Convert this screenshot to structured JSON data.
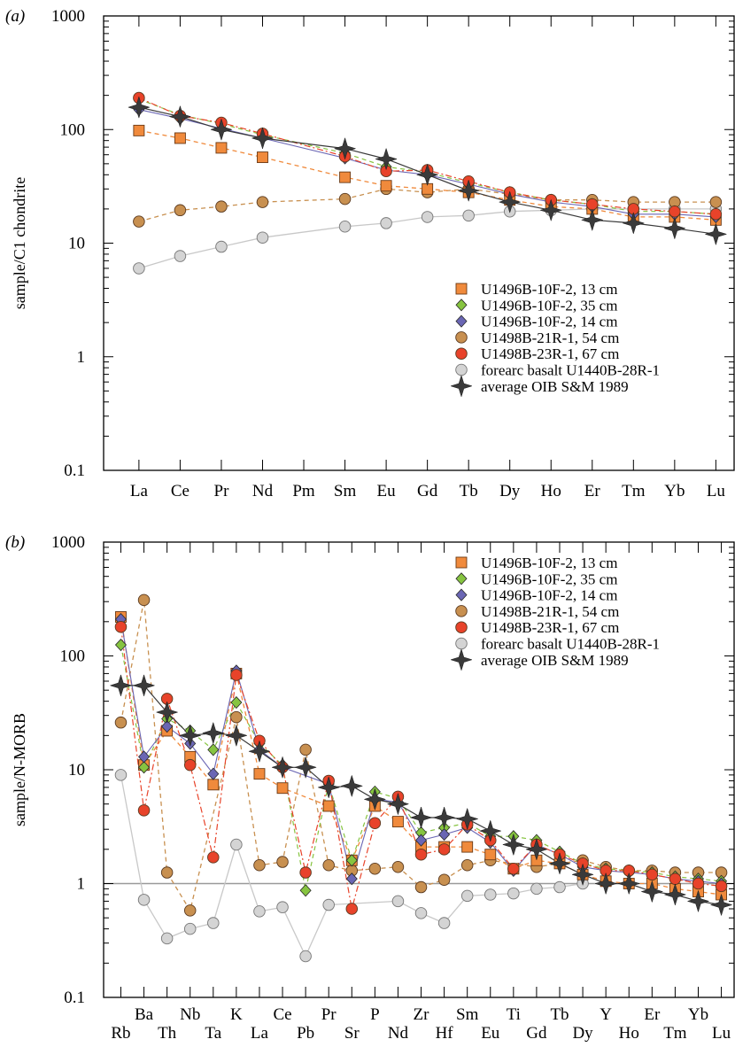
{
  "colors": {
    "orange_square": "#f08a3c",
    "green_diamond": "#86c440",
    "blue_diamond": "#6a66b4",
    "brown_circle": "#c89050",
    "red_circle": "#e8432a",
    "gray_circle": "#d4d4d4",
    "oib_star": "#3a3a3a",
    "frame": "#000000",
    "reference_line": "#9a9a9a"
  },
  "legend_entries": [
    {
      "key": "s13",
      "label": "U1496B-10F-2, 13 cm",
      "marker": "square",
      "color": "#f08a3c"
    },
    {
      "key": "s35",
      "label": "U1496B-10F-2, 35 cm",
      "marker": "diamond",
      "color": "#86c440"
    },
    {
      "key": "s14",
      "label": "U1496B-10F-2, 14 cm",
      "marker": "diamond",
      "color": "#6a66b4"
    },
    {
      "key": "s54",
      "label": "U1498B-21R-1, 54 cm",
      "marker": "circle",
      "color": "#c89050"
    },
    {
      "key": "s67",
      "label": "U1498B-23R-1, 67 cm",
      "marker": "circle",
      "color": "#e8432a"
    },
    {
      "key": "fab",
      "label": "forearc basalt U1440B-28R-1",
      "marker": "circle",
      "color": "#d4d4d4"
    },
    {
      "key": "oib",
      "label": "average OIB S&M 1989",
      "marker": "star",
      "color": "#3a3a3a"
    }
  ],
  "chart_data": [
    {
      "panel_label": "(a)",
      "type": "line",
      "ylabel": "sample/C1 chondrite",
      "yscale": "log",
      "ylim": [
        0.1,
        1000
      ],
      "yticks": [
        "0.1",
        "1",
        "10",
        "100",
        "1000"
      ],
      "categories": [
        "La",
        "Ce",
        "Pr",
        "Nd",
        "Pm",
        "Sm",
        "Eu",
        "Gd",
        "Tb",
        "Dy",
        "Ho",
        "Er",
        "Tm",
        "Yb",
        "Lu"
      ],
      "legend_position": "lower-right",
      "series": [
        {
          "key": "s13",
          "name": "U1496B-10F-2, 13 cm",
          "values": [
            98,
            84,
            69,
            57,
            null,
            38,
            32,
            30,
            28,
            24,
            21,
            20,
            17,
            17,
            16
          ]
        },
        {
          "key": "s35",
          "name": "U1496B-10F-2, 35 cm",
          "values": [
            185,
            135,
            112,
            90,
            null,
            62,
            47,
            42,
            34,
            28,
            24,
            22,
            19,
            19,
            18
          ]
        },
        {
          "key": "s14",
          "name": "U1496B-10F-2, 14 cm",
          "values": [
            150,
            125,
            102,
            84,
            null,
            56,
            44,
            40,
            33,
            27,
            23,
            21,
            18,
            18,
            17
          ]
        },
        {
          "key": "s54",
          "name": "U1498B-21R-1, 54 cm",
          "values": [
            15.5,
            19.5,
            21,
            23,
            null,
            24.5,
            30,
            28,
            30,
            27,
            24,
            24,
            23,
            23,
            23
          ]
        },
        {
          "key": "s67",
          "name": "U1498B-23R-1, 67 cm",
          "values": [
            190,
            132,
            115,
            92,
            null,
            58,
            43,
            44,
            35,
            28,
            24,
            22,
            20,
            19,
            18
          ]
        },
        {
          "key": "fab",
          "name": "forearc basalt U1440B-28R-1",
          "values": [
            6,
            7.7,
            9.3,
            11.2,
            null,
            14,
            15,
            17,
            17.5,
            19,
            19.5,
            20,
            20,
            20,
            20
          ]
        },
        {
          "key": "oib",
          "name": "average OIB S&M 1989",
          "values": [
            157,
            130,
            100,
            84,
            null,
            68,
            55,
            40,
            29,
            23,
            19.5,
            16,
            15,
            13.5,
            12
          ]
        }
      ]
    },
    {
      "panel_label": "(b)",
      "type": "line",
      "ylabel": "sample/N-MORB",
      "yscale": "log",
      "ylim": [
        0.1,
        1000
      ],
      "yticks": [
        "0.1",
        "1",
        "10",
        "100",
        "1000"
      ],
      "reference_line": 1,
      "categories": [
        "Rb",
        "Ba",
        "Th",
        "Nb",
        "Ta",
        "K",
        "La",
        "Ce",
        "Pb",
        "Pr",
        "Sr",
        "P",
        "Nd",
        "Zr",
        "Hf",
        "Sm",
        "Eu",
        "Ti",
        "Gd",
        "Tb",
        "Dy",
        "Y",
        "Ho",
        "Er",
        "Tm",
        "Yb",
        "Lu"
      ],
      "legend_position": "top-right",
      "series": [
        {
          "key": "s13",
          "name": "U1496B-10F-2, 13 cm",
          "values": [
            220,
            11,
            22,
            13,
            7.4,
            70,
            9.2,
            6.9,
            null,
            4.8,
            1.6,
            4.8,
            3.5,
            2.1,
            2.1,
            2.1,
            1.8,
            1.35,
            1.6,
            1.5,
            1.2,
            1.05,
            1.0,
            1.0,
            0.9,
            0.85,
            0.8
          ]
        },
        {
          "key": "s35",
          "name": "U1496B-10F-2, 35 cm",
          "values": [
            125,
            10.5,
            28,
            22,
            15,
            39,
            17,
            11,
            0.87,
            7.5,
            1.6,
            6.4,
            5.6,
            2.8,
            3.1,
            3.4,
            2.6,
            2.6,
            2.4,
            1.9,
            1.5,
            1.35,
            1.3,
            1.25,
            1.15,
            1.1,
            1.05
          ]
        },
        {
          "key": "s14",
          "name": "U1496B-10F-2, 14 cm",
          "values": [
            210,
            13,
            24,
            17,
            9.2,
            74,
            15,
            10.5,
            null,
            7.5,
            1.1,
            5.5,
            5.2,
            2.4,
            2.7,
            3.1,
            2.3,
            1.3,
            2.2,
            1.8,
            1.4,
            1.3,
            1.25,
            1.2,
            1.1,
            1.05,
            1.0
          ]
        },
        {
          "key": "s54",
          "name": "U1498B-21R-1, 54 cm",
          "values": [
            26,
            310,
            1.25,
            0.58,
            null,
            29,
            1.45,
            1.55,
            15,
            1.45,
            1.3,
            1.35,
            1.4,
            0.93,
            1.08,
            1.45,
            1.6,
            null,
            1.4,
            1.5,
            1.6,
            1.4,
            1.3,
            1.3,
            1.25,
            1.25,
            1.25
          ]
        },
        {
          "key": "s67",
          "name": "U1498B-23R-1, 67 cm",
          "values": [
            180,
            4.4,
            42,
            11,
            1.7,
            68,
            18,
            10.5,
            1.25,
            8,
            0.6,
            3.4,
            5.8,
            1.8,
            2.0,
            3.3,
            2.4,
            1.35,
            2.2,
            1.8,
            1.5,
            1.3,
            1.3,
            1.2,
            1.1,
            1.0,
            0.95
          ]
        },
        {
          "key": "fab",
          "name": "forearc basalt U1440B-28R-1",
          "values": [
            9,
            0.72,
            0.33,
            0.4,
            0.45,
            2.2,
            0.57,
            0.62,
            0.23,
            0.65,
            null,
            null,
            0.7,
            0.55,
            0.45,
            0.78,
            0.8,
            0.82,
            0.9,
            0.93,
            1.0,
            null,
            null,
            null,
            null,
            null,
            null
          ]
        },
        {
          "key": "oib",
          "name": "average OIB S&M 1989",
          "values": [
            55,
            55,
            32,
            20,
            21,
            20,
            14.5,
            10.5,
            10.5,
            7,
            7.2,
            5.5,
            5,
            3.8,
            3.8,
            3.7,
            2.9,
            2.2,
            2.0,
            1.5,
            1.2,
            1.0,
            1.0,
            0.85,
            0.8,
            0.7,
            0.65
          ]
        }
      ]
    }
  ]
}
